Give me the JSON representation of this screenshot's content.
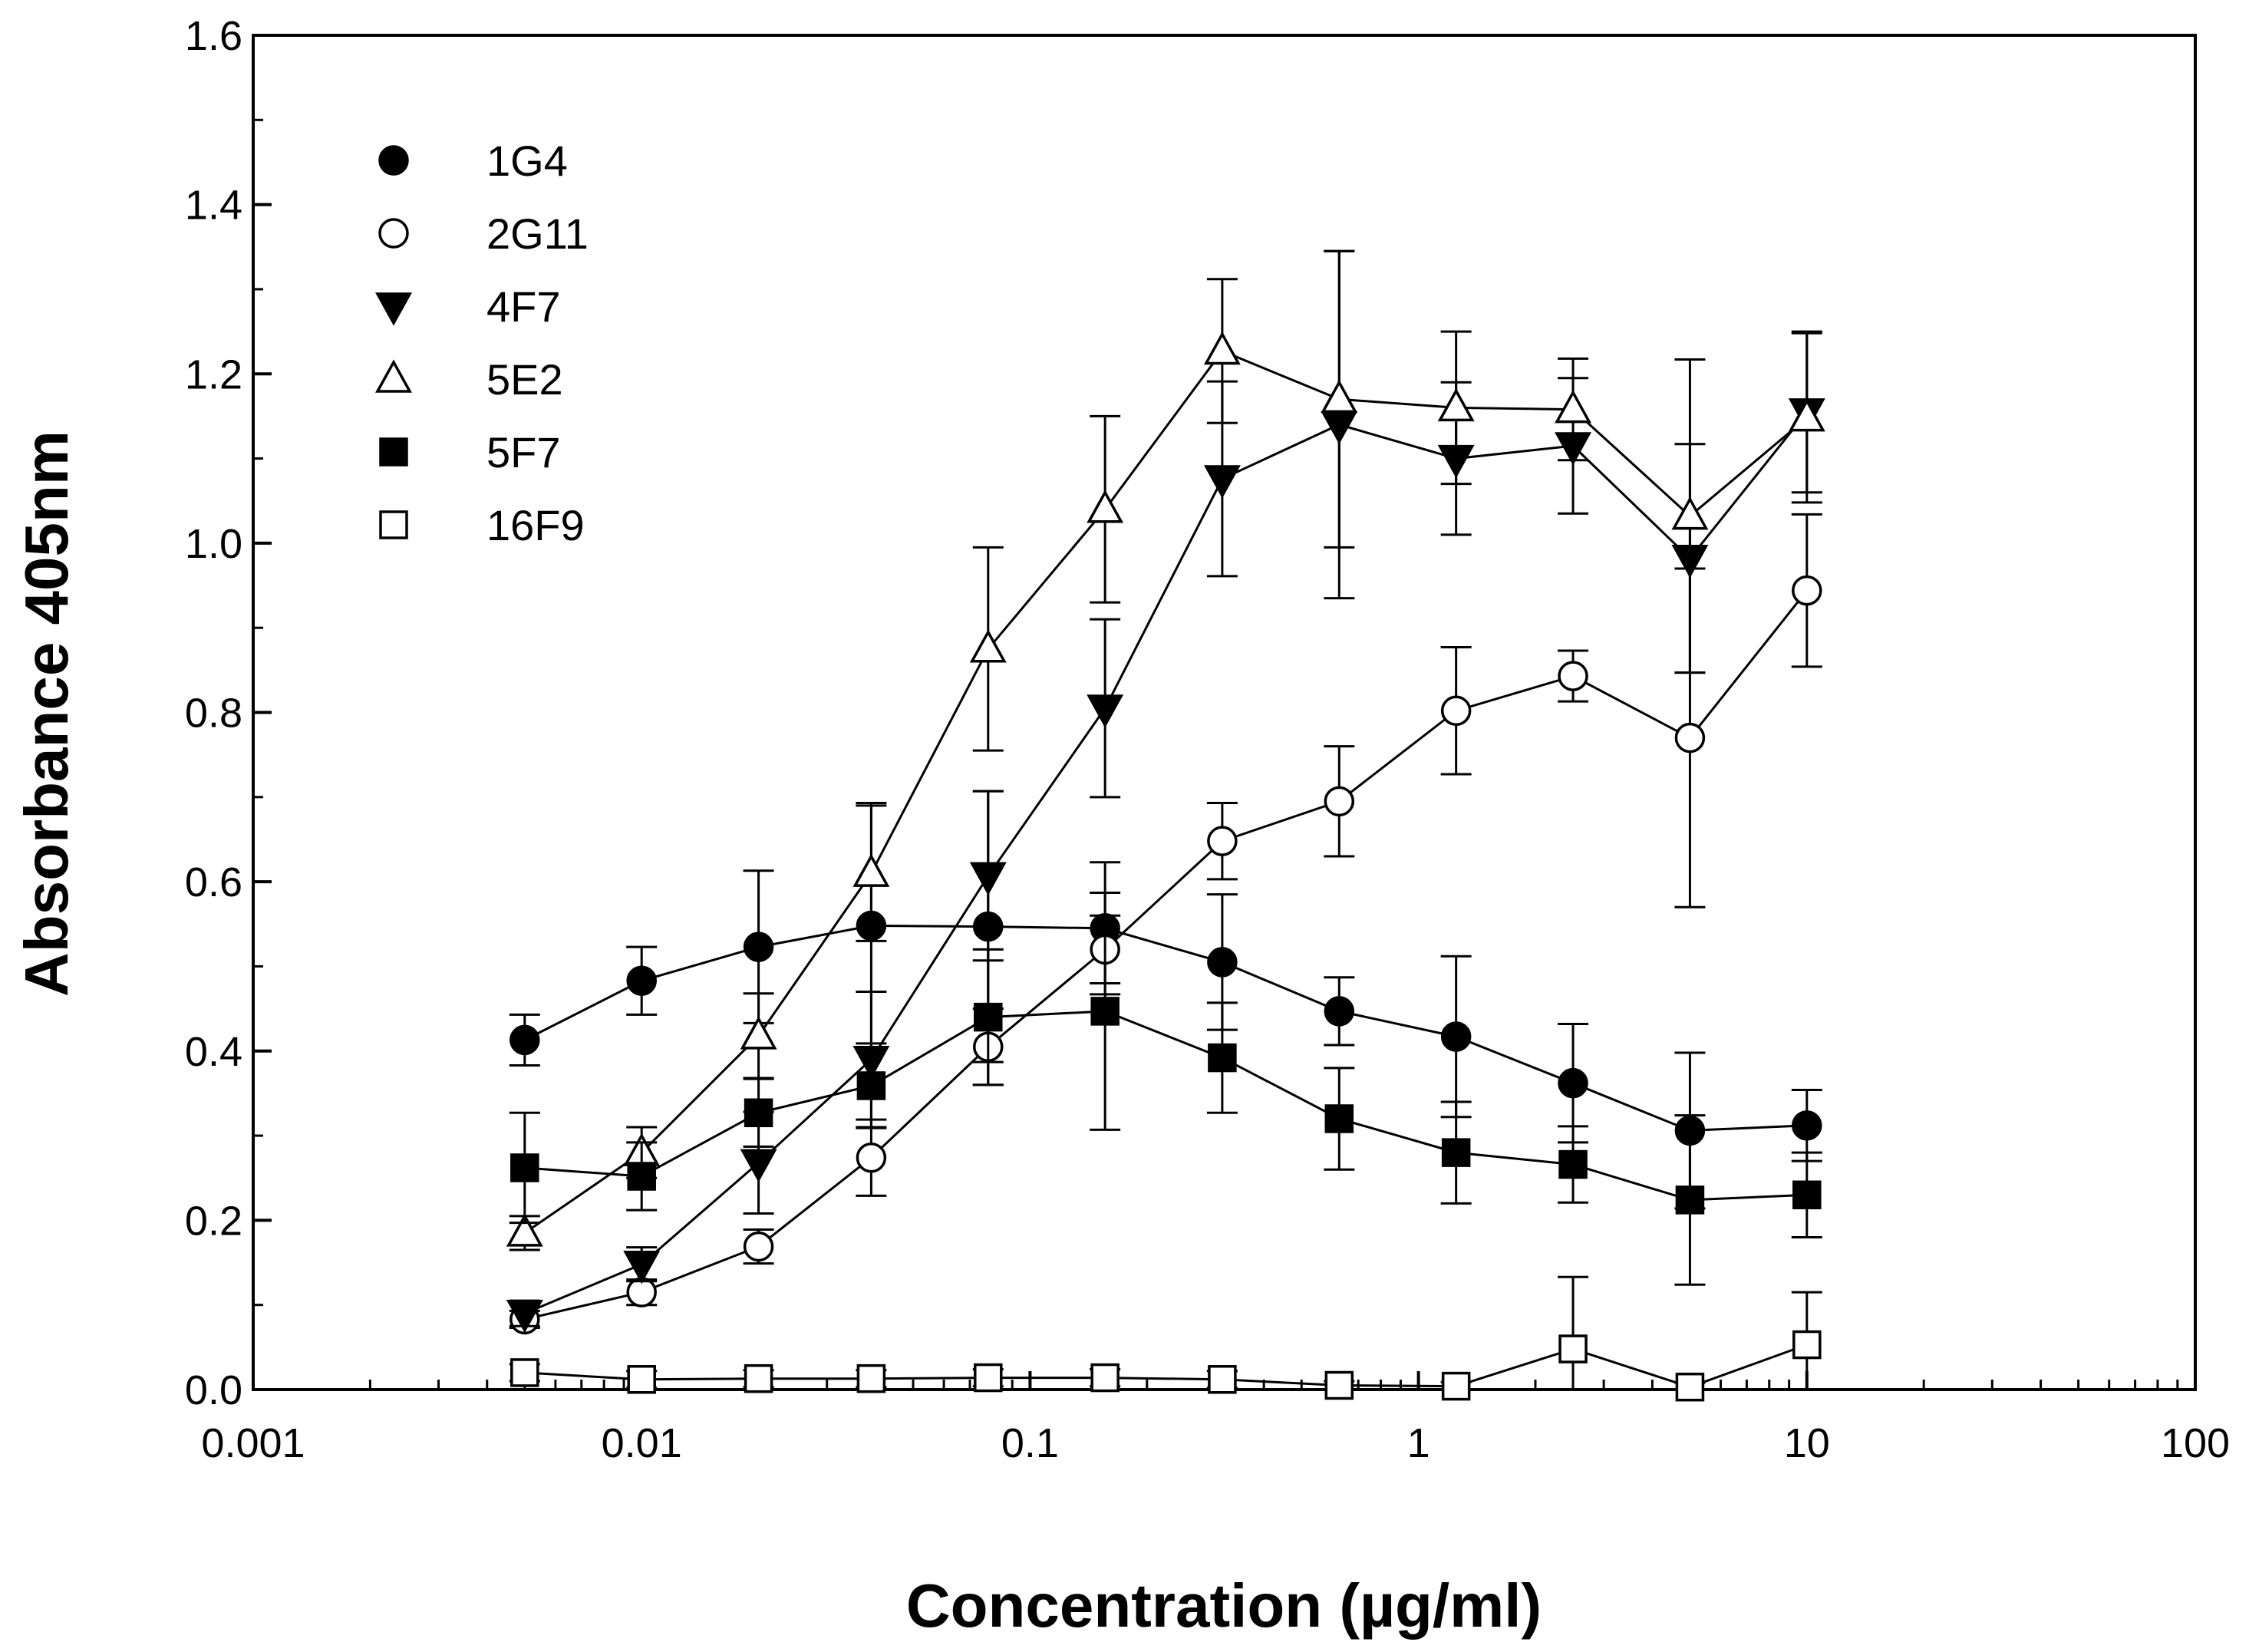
{
  "chart_data": {
    "type": "line",
    "title": "",
    "xlabel": "Concentration (µg/ml)",
    "ylabel": "Absorbance 405nm",
    "xscale": "log",
    "xlim": [
      0.001,
      100
    ],
    "ylim": [
      0,
      1.6
    ],
    "xticks": [
      0.001,
      0.01,
      0.1,
      1,
      10,
      100
    ],
    "xtick_labels": [
      "0.001",
      "0.01",
      "0.1",
      "1",
      "10",
      "100"
    ],
    "yticks": [
      0,
      0.2,
      0.4,
      0.6,
      0.8,
      1.0,
      1.2,
      1.4,
      1.6
    ],
    "ytick_labels": [
      "0.0",
      "0.2",
      "0.4",
      "0.6",
      "0.8",
      "1.0",
      "1.2",
      "1.4",
      "1.6"
    ],
    "grid": false,
    "legend_position": "top-left",
    "x": [
      0.005,
      0.01,
      0.02,
      0.039,
      0.078,
      0.156,
      0.3125,
      0.625,
      1.25,
      2.5,
      5,
      10
    ],
    "series": [
      {
        "name": "1G4",
        "marker": "circle-filled",
        "values": [
          0.413,
          0.483,
          0.523,
          0.548,
          0.547,
          0.545,
          0.505,
          0.447,
          0.417,
          0.362,
          0.306,
          0.312
        ],
        "errors": [
          0.03,
          0.04,
          0.09,
          0.145,
          0.16,
          0.078,
          0.08,
          0.04,
          0.095,
          0.07,
          0.092,
          0.042
        ]
      },
      {
        "name": "2G11",
        "marker": "circle-open",
        "values": [
          0.083,
          0.115,
          0.169,
          0.274,
          0.405,
          0.52,
          0.648,
          0.695,
          0.802,
          0.843,
          0.77,
          0.944
        ],
        "errors": [
          0.01,
          0.015,
          0.02,
          0.045,
          0.045,
          0.04,
          0.045,
          0.065,
          0.075,
          0.03,
          0.2,
          0.09
        ]
      },
      {
        "name": "4F7",
        "marker": "triangle-down-filled",
        "values": [
          0.09,
          0.148,
          0.268,
          0.39,
          0.607,
          0.805,
          1.076,
          1.14,
          1.1,
          1.115,
          0.982,
          1.155
        ],
        "errors": [
          0.015,
          0.02,
          0.06,
          0.08,
          0.1,
          0.105,
          0.115,
          0.205,
          0.09,
          0.08,
          0.135,
          0.095
        ]
      },
      {
        "name": "5E2",
        "marker": "triangle-up-open",
        "values": [
          0.185,
          0.28,
          0.418,
          0.61,
          0.875,
          1.04,
          1.227,
          1.17,
          1.16,
          1.158,
          1.032,
          1.148
        ],
        "errors": [
          0.02,
          0.03,
          0.05,
          0.08,
          0.12,
          0.11,
          0.085,
          0.175,
          0.09,
          0.06,
          0.185,
          0.1
        ]
      },
      {
        "name": "5F7",
        "marker": "square-filled",
        "values": [
          0.262,
          0.252,
          0.327,
          0.359,
          0.44,
          0.447,
          0.392,
          0.32,
          0.28,
          0.266,
          0.224,
          0.23
        ],
        "errors": [
          0.065,
          0.04,
          0.04,
          0.05,
          0.08,
          0.14,
          0.065,
          0.06,
          0.06,
          0.045,
          0.1,
          0.05
        ]
      },
      {
        "name": "16F9",
        "marker": "square-open",
        "values": [
          0.02,
          0.012,
          0.013,
          0.013,
          0.014,
          0.014,
          0.012,
          0.005,
          0.004,
          0.048,
          0.003,
          0.053
        ],
        "errors": [
          0.01,
          0.01,
          0.01,
          0.01,
          0.01,
          0.01,
          0.01,
          0.005,
          0.005,
          0.085,
          0.005,
          0.062
        ]
      }
    ]
  }
}
